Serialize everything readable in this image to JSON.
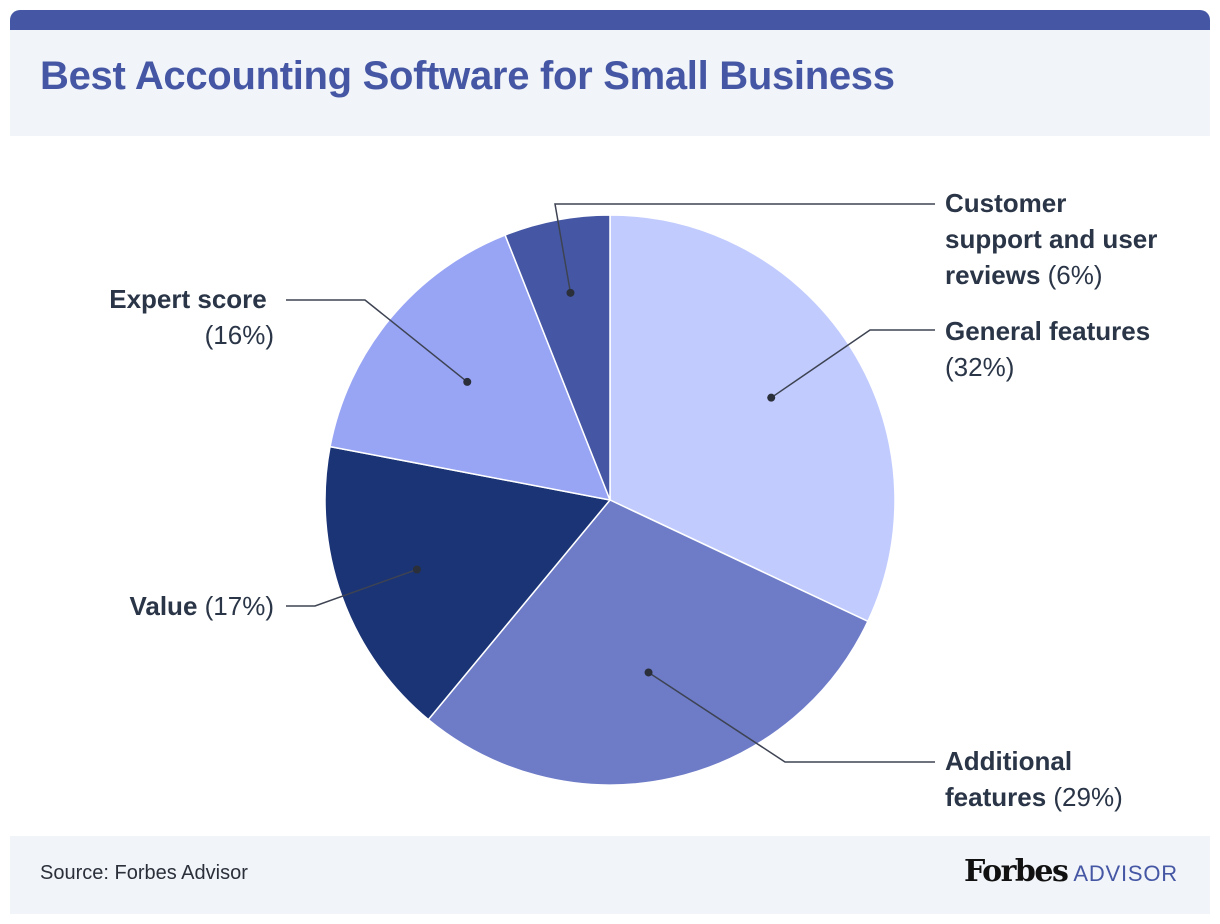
{
  "header": {
    "title": "Best Accounting Software for Small Business"
  },
  "footer": {
    "source": "Source: Forbes Advisor",
    "brand_main": "Forbes",
    "brand_sub": "ADVISOR"
  },
  "colors": {
    "bar": "#4557a4",
    "title": "#4557a4",
    "label": "#2a3547",
    "leader": "#3d4352",
    "brand_sub": "#4557a4"
  },
  "chart_data": {
    "type": "pie",
    "title": "Best Accounting Software for Small Business",
    "slices": [
      {
        "label": "General features",
        "value": 32,
        "pct_text": "(32%)",
        "color": "#c1cbfe"
      },
      {
        "label": "Additional features",
        "value": 29,
        "pct_text": "(29%)",
        "color": "#6e7cc8"
      },
      {
        "label": "Value",
        "value": 17,
        "pct_text": "(17%)",
        "color": "#1b3476"
      },
      {
        "label": "Expert score",
        "value": 16,
        "pct_text": "(16%)",
        "color": "#98a4f4"
      },
      {
        "label": "Customer support and user reviews",
        "value": 6,
        "pct_text": "(6%)",
        "color": "#4557a4"
      }
    ],
    "start_angle": "12 o'clock",
    "direction": "clockwise",
    "legend": "none (callout labels)"
  }
}
